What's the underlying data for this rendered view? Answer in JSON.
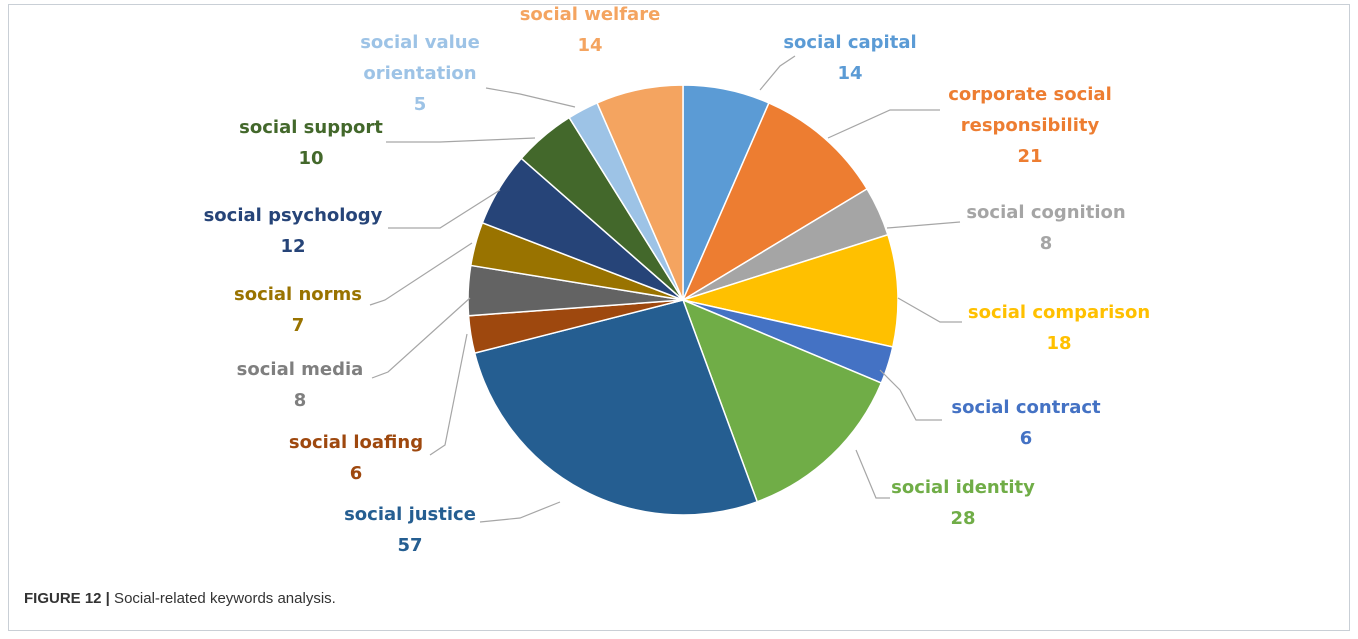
{
  "chart_data": {
    "type": "pie",
    "title": "",
    "slices": [
      {
        "label": [
          "social capital"
        ],
        "value": 14,
        "color": "#5b9bd5"
      },
      {
        "label": [
          "corporate social",
          "responsibility"
        ],
        "value": 21,
        "color": "#ed7d31"
      },
      {
        "label": [
          "social cognition"
        ],
        "value": 8,
        "color": "#a5a5a5"
      },
      {
        "label": [
          "social comparison"
        ],
        "value": 18,
        "color": "#ffc000"
      },
      {
        "label": [
          "social contract"
        ],
        "value": 6,
        "color": "#4472c4"
      },
      {
        "label": [
          "social identity"
        ],
        "value": 28,
        "color": "#70ad47"
      },
      {
        "label": [
          "social justice"
        ],
        "value": 57,
        "color": "#255e91"
      },
      {
        "label": [
          "social loafing"
        ],
        "value": 6,
        "color": "#9e480e"
      },
      {
        "label": [
          "social media"
        ],
        "value": 8,
        "color": "#636363"
      },
      {
        "label": [
          "social norms"
        ],
        "value": 7,
        "color": "#997300"
      },
      {
        "label": [
          "social psychology"
        ],
        "value": 12,
        "color": "#264478"
      },
      {
        "label": [
          "social support"
        ],
        "value": 10,
        "color": "#43682b"
      },
      {
        "label": [
          "social value",
          "orientation"
        ],
        "value": 5,
        "color": "#9dc3e6"
      },
      {
        "label": [
          "social welfare"
        ],
        "value": 14,
        "color": "#f4a460"
      }
    ],
    "label_colors": {
      "social capital": "#5b9bd5",
      "corporate social responsibility": "#ed7d31",
      "social cognition": "#a5a5a5",
      "social comparison": "#ffc000",
      "social contract": "#4472c4",
      "social identity": "#70ad47",
      "social justice": "#255e91",
      "social loafing": "#9e480e",
      "social media": "#7f7f7f",
      "social norms": "#997300",
      "social psychology": "#264478",
      "social support": "#43682b",
      "social value orientation": "#9dc3e6",
      "social welfare": "#f4a460"
    }
  },
  "caption": {
    "figure_label": "FIGURE 12 |",
    "text": " Social-related keywords analysis."
  }
}
